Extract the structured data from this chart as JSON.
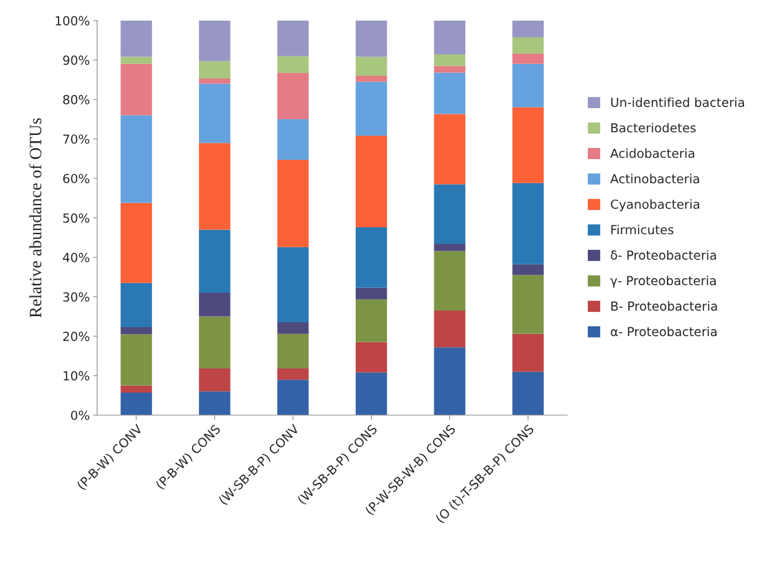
{
  "chart_data": {
    "type": "bar",
    "stacked": true,
    "ylabel": "Relative abundance of OTUs",
    "categories": [
      "(P-B-W) CONV",
      "(P-B-W) CONS",
      "(W-SB-B-P) CONV",
      "(W-SB-B-P) CONS",
      "(P-W-SB-W-B) CONS",
      "(O (t)-T-SB-B-P) CONS"
    ],
    "series": [
      {
        "name": "α- Proteobacteria",
        "color": "#3462a6",
        "values": [
          5.7,
          6,
          9,
          10.8,
          17.2,
          11
        ]
      },
      {
        "name": "Β- Proteobacteria",
        "color": "#be4446",
        "values": [
          1.8,
          5.8,
          2.8,
          7.7,
          9.3,
          9.6
        ]
      },
      {
        "name": "γ- Proteobacteria",
        "color": "#7d9445",
        "values": [
          13,
          13.2,
          8.8,
          10.8,
          15.1,
          14.9
        ]
      },
      {
        "name": "δ- Proteobacteria",
        "color": "#4e4a7d",
        "values": [
          1.8,
          6,
          2.9,
          3,
          1.8,
          2.7
        ]
      },
      {
        "name": "Firmicutes",
        "color": "#2a78b4",
        "values": [
          11.2,
          16,
          19.1,
          15.3,
          15.1,
          20.6
        ]
      },
      {
        "name": "Cyanobacteria",
        "color": "#fd6137",
        "values": [
          20.3,
          22,
          22.1,
          23.2,
          17.8,
          19.2
        ]
      },
      {
        "name": "Actinobacteria",
        "color": "#65a2de",
        "values": [
          22.2,
          15,
          10.3,
          13.7,
          10.5,
          11
        ]
      },
      {
        "name": "Acidobacteria",
        "color": "#e57b84",
        "values": [
          13,
          1.3,
          11.7,
          1.5,
          1.7,
          2.6
        ]
      },
      {
        "name": "Bacteriodetes",
        "color": "#a9c67e",
        "values": [
          1.8,
          4.4,
          4.3,
          4.8,
          2.9,
          4.2
        ]
      },
      {
        "name": "Un-identified bacteria",
        "color": "#9896c5",
        "values": [
          9.2,
          10.3,
          9,
          9.2,
          8.6,
          4.2
        ]
      }
    ],
    "ylim": [
      0,
      100
    ],
    "yticks": [
      {
        "value": 0,
        "label": "0%"
      },
      {
        "value": 10,
        "label": "10%"
      },
      {
        "value": 20,
        "label": "20%"
      },
      {
        "value": 30,
        "label": "30%"
      },
      {
        "value": 40,
        "label": "40%"
      },
      {
        "value": 50,
        "label": "50%"
      },
      {
        "value": 60,
        "label": "60%"
      },
      {
        "value": 70,
        "label": "70%"
      },
      {
        "value": 80,
        "label": "80%"
      },
      {
        "value": 90,
        "label": "90%"
      },
      {
        "value": 100,
        "label": "100%"
      }
    ],
    "legend": "right"
  }
}
